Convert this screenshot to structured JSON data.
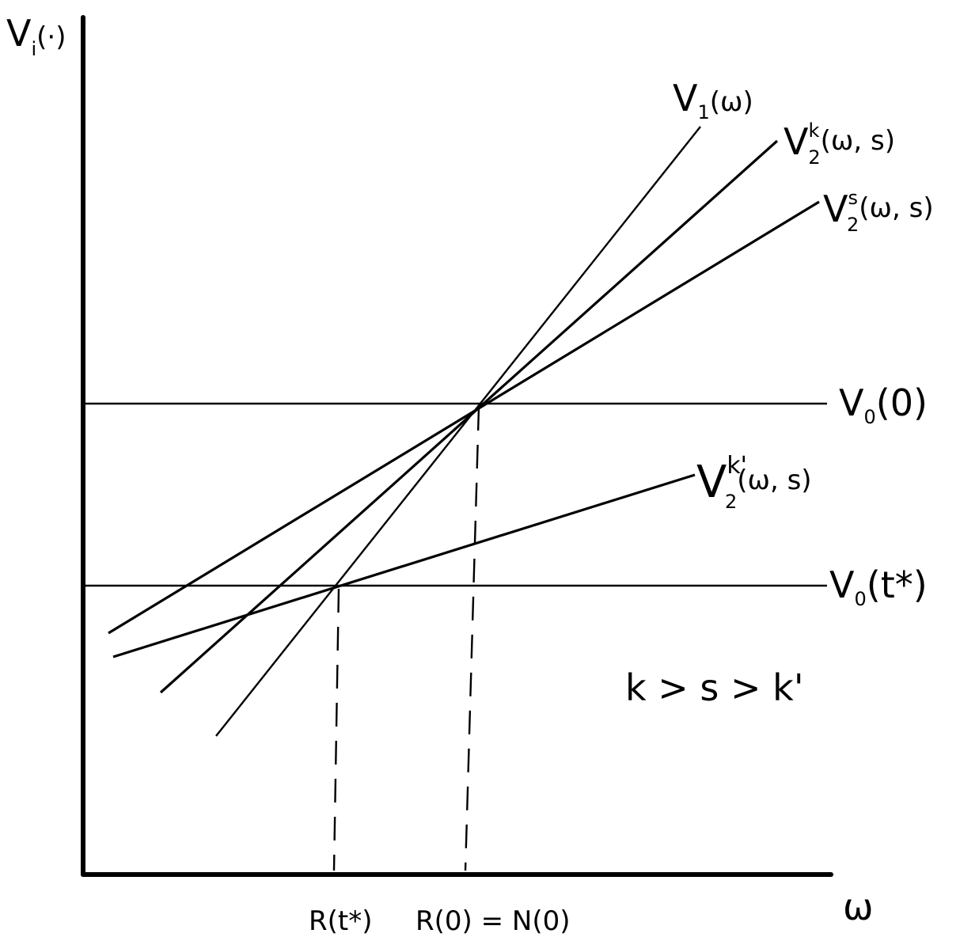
{
  "y_axis_label": {
    "base": "V",
    "sub": "i",
    "rest": "(·)"
  },
  "x_axis_label": "ω",
  "curves": {
    "v1": {
      "base": "V",
      "sub": "1",
      "sup": "",
      "rest": "(ω)"
    },
    "v2k": {
      "base": "V",
      "sub": "2",
      "sup": "k",
      "rest": "(ω, s)"
    },
    "v2s": {
      "base": "V",
      "sub": "2",
      "sup": "s",
      "rest": "(ω, s)"
    },
    "v0_zero": {
      "base": "V",
      "sub": "0",
      "sup": "",
      "rest": "(0)"
    },
    "v2kp": {
      "base": "V",
      "sub": "2",
      "sup": "k'",
      "rest": "(ω, s)"
    },
    "v0_tstar": {
      "base": "V",
      "sub": "0",
      "sup": "",
      "rest": "(t*)"
    }
  },
  "x_ticks": {
    "r_tstar": "R(t*)",
    "r_zero": "R(0) = N(0)"
  },
  "condition": "k > s > k'"
}
